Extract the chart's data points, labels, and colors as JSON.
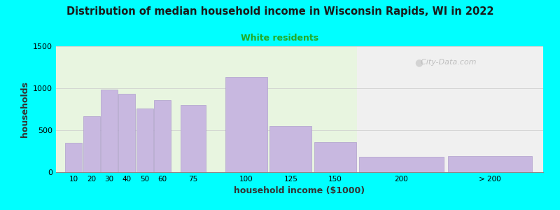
{
  "title": "Distribution of median household income in Wisconsin Rapids, WI in 2022",
  "subtitle": "White residents",
  "xlabel": "household income ($1000)",
  "ylabel": "households",
  "bg_outer": "#00FFFF",
  "bar_color": "#c8b8e0",
  "bar_edge_color": "#b0a0cc",
  "title_color": "#1a1a1a",
  "subtitle_color": "#22aa22",
  "categories": [
    "10",
    "20",
    "30",
    "40",
    "50",
    "60",
    "75",
    "100",
    "125",
    "150",
    "200",
    "> 200"
  ],
  "values": [
    350,
    670,
    980,
    930,
    760,
    860,
    800,
    1130,
    550,
    360,
    185,
    195
  ],
  "bar_lefts": [
    10,
    20,
    30,
    40,
    50,
    60,
    75,
    100,
    125,
    150,
    175,
    225
  ],
  "bar_widths": [
    10,
    10,
    10,
    10,
    10,
    10,
    15,
    25,
    25,
    25,
    50,
    50
  ],
  "ylim": [
    0,
    1500
  ],
  "yticks": [
    0,
    500,
    1000,
    1500
  ],
  "xlim_left": 5,
  "xlim_right": 280,
  "bg_split_x": 175,
  "bg_left_color": "#e8f5e0",
  "bg_right_color": "#f0f0f0",
  "watermark": "City-Data.com"
}
